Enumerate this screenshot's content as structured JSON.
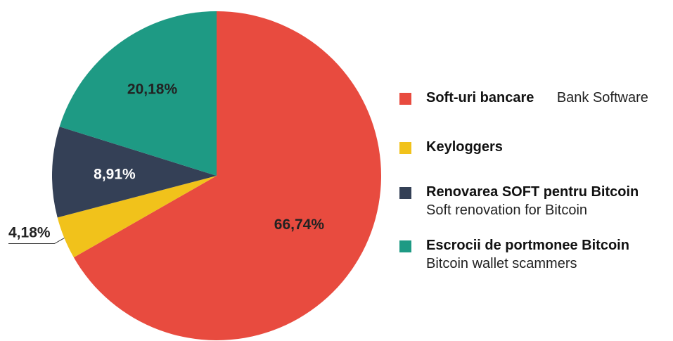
{
  "chart_data": {
    "type": "pie",
    "slices": [
      {
        "label": "Soft-uri bancare",
        "translation": "Bank Software",
        "value": 66.74,
        "value_label": "66,74%",
        "color": "#e84b3f",
        "label_color": "#222222"
      },
      {
        "label": "Keyloggers",
        "translation": "",
        "value": 4.18,
        "value_label": "4,18%",
        "color": "#f1c21b",
        "label_color": "#222222"
      },
      {
        "label": "Renovarea SOFT pentru Bitcoin",
        "translation": "Soft renovation for Bitcoin",
        "value": 8.91,
        "value_label": "8,91%",
        "color": "#344056",
        "label_color": "#ffffff"
      },
      {
        "label": "Escrocii de portmonee Bitcoin",
        "translation": "Bitcoin wallet scammers",
        "value": 20.18,
        "value_label": "20,18%",
        "color": "#1e9a84",
        "label_color": "#222222"
      }
    ],
    "start_angle": "12 o'clock",
    "direction": "clockwise",
    "legend_position": "right"
  }
}
